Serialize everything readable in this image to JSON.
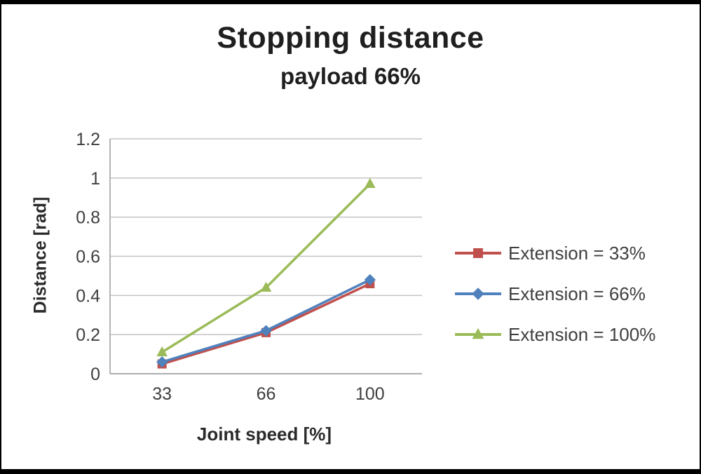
{
  "chart_data": {
    "type": "line",
    "title": "Stopping distance",
    "subtitle": "payload 66%",
    "xlabel": "Joint speed [%]",
    "ylabel": "Distance [rad]",
    "categories": [
      "33",
      "66",
      "100"
    ],
    "ylim": [
      0,
      1.2
    ],
    "yticks": [
      0,
      0.2,
      0.4,
      0.6,
      0.8,
      1,
      1.2
    ],
    "ytick_labels": [
      "0",
      "0.2",
      "0.4",
      "0.6",
      "0.8",
      "1",
      "1.2"
    ],
    "grid": true,
    "legend_position": "right",
    "colors": {
      "gridline": "#c3c3c3",
      "axis": "#9c9c9c",
      "text": "#3f3f3f"
    },
    "series": [
      {
        "name": "Extension = 33%",
        "color": "#C0504D",
        "marker": "square",
        "values": [
          0.05,
          0.21,
          0.46
        ]
      },
      {
        "name": "Extension = 66%",
        "color": "#4F81BD",
        "marker": "diamond",
        "values": [
          0.06,
          0.22,
          0.48
        ]
      },
      {
        "name": "Extension = 100%",
        "color": "#9BBB59",
        "marker": "triangle",
        "values": [
          0.11,
          0.44,
          0.97
        ]
      }
    ]
  }
}
